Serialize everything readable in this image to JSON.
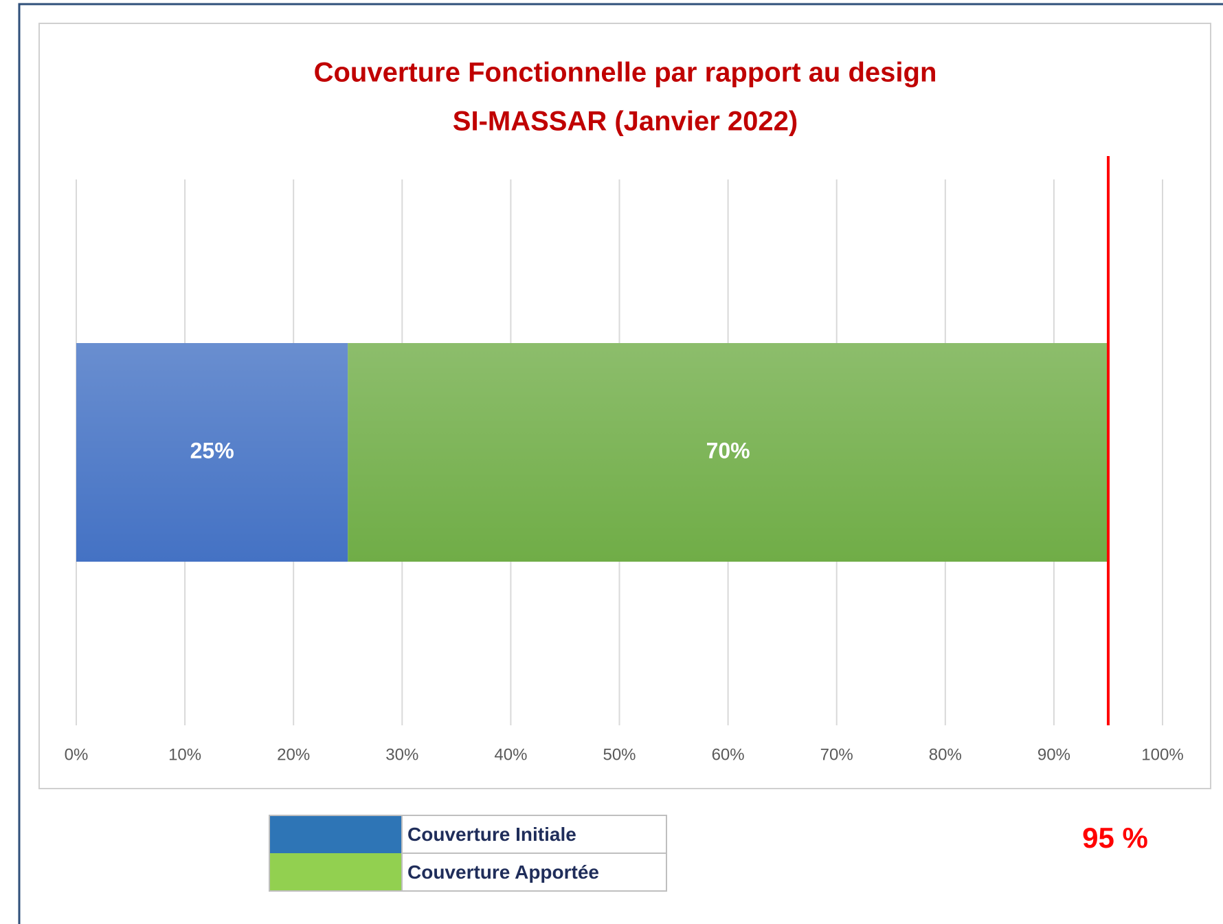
{
  "chart_data": {
    "type": "stacked_barh",
    "title": [
      "Couverture Fonctionnelle par rapport au design",
      "SI-MASSAR (Janvier 2022)"
    ],
    "series": [
      {
        "name": "Couverture Initiale",
        "color": "#4472c4",
        "legend_color": "#2e75b6",
        "values": [
          25
        ],
        "value_labels": [
          "25%"
        ]
      },
      {
        "name": "Couverture Apportée",
        "color": "#70ad47",
        "legend_color": "#92d050",
        "values": [
          70
        ],
        "value_labels": [
          "70%"
        ]
      }
    ],
    "xlim": [
      0,
      100
    ],
    "xticks": [
      {
        "value": 0,
        "label": "0%"
      },
      {
        "value": 10,
        "label": "10%"
      },
      {
        "value": 20,
        "label": "20%"
      },
      {
        "value": 30,
        "label": "30%"
      },
      {
        "value": 40,
        "label": "40%"
      },
      {
        "value": 50,
        "label": "50%"
      },
      {
        "value": 60,
        "label": "60%"
      },
      {
        "value": 70,
        "label": "70%"
      },
      {
        "value": 80,
        "label": "80%"
      },
      {
        "value": 90,
        "label": "90%"
      },
      {
        "value": 100,
        "label": "100%"
      }
    ],
    "grid": true,
    "target_line": {
      "value": 95,
      "label": "95 %",
      "color": "#ff0000"
    }
  }
}
